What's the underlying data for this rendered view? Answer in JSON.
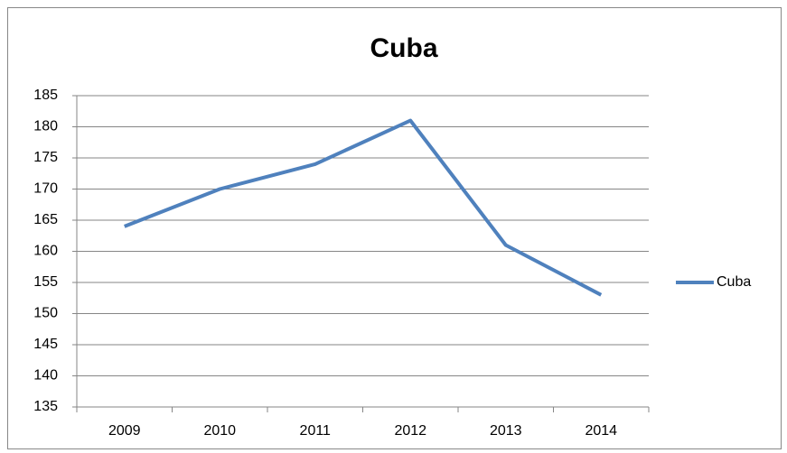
{
  "chart_data": {
    "type": "line",
    "title": "Cuba",
    "categories": [
      "2009",
      "2010",
      "2011",
      "2012",
      "2013",
      "2014"
    ],
    "series": [
      {
        "name": "Cuba",
        "color": "#4f81bd",
        "values": [
          164,
          170,
          174,
          181,
          161,
          153
        ]
      }
    ],
    "ylim": [
      135,
      185
    ],
    "yticks": [
      135,
      140,
      145,
      150,
      155,
      160,
      165,
      170,
      175,
      180,
      185
    ],
    "grid": true,
    "legend": "right"
  }
}
